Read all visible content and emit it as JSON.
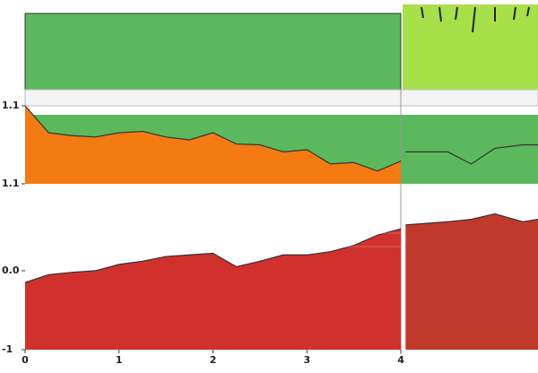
{
  "chart_data": [
    {
      "type": "area",
      "xlim": [
        0,
        5.46
      ],
      "ylim": [
        0,
        1.1
      ],
      "yticks": [
        1.1
      ],
      "series": [
        {
          "color": "#f47a12",
          "x": [
            0,
            0.25,
            0.5,
            0.75,
            1,
            1.25,
            1.5,
            1.75,
            2,
            2.25,
            2.5,
            2.75,
            3,
            3.25,
            3.5,
            3.75,
            4
          ],
          "values": [
            1.1,
            0.72,
            0.68,
            0.66,
            0.72,
            0.74,
            0.66,
            0.62,
            0.72,
            0.56,
            0.55,
            0.45,
            0.48,
            0.28,
            0.3,
            0.18,
            0.32
          ]
        },
        {
          "color": "#5cb85c",
          "x": [
            4.05,
            4.5,
            4.75,
            5.0,
            5.3,
            5.46
          ],
          "values": [
            0.45,
            0.45,
            0.28,
            0.5,
            0.55,
            0.55
          ]
        }
      ]
    },
    {
      "type": "area",
      "xlim": [
        0,
        5.46
      ],
      "ylim": [
        -1,
        1.1
      ],
      "yticks": [
        1.1,
        {
          "value": 0,
          "label": "0.0"
        },
        -1
      ],
      "xticks": [
        0,
        1,
        2,
        3,
        4
      ],
      "series": [
        {
          "color": "#d0312d",
          "x": [
            0,
            0.25,
            0.5,
            0.75,
            1,
            1.25,
            1.5,
            1.75,
            2,
            2.25,
            2.5,
            2.75,
            3,
            3.25,
            3.5,
            3.75,
            4
          ],
          "values": [
            -0.15,
            -0.05,
            -0.02,
            0.0,
            0.08,
            0.12,
            0.18,
            0.2,
            0.22,
            0.05,
            0.12,
            0.2,
            0.2,
            0.24,
            0.32,
            0.45,
            0.53
          ]
        },
        {
          "color": "#c0392b",
          "x": [
            4.05,
            4.5,
            4.75,
            5.0,
            5.3,
            5.46
          ],
          "values": [
            0.58,
            0.62,
            0.65,
            0.72,
            0.62,
            0.65
          ]
        }
      ]
    }
  ]
}
